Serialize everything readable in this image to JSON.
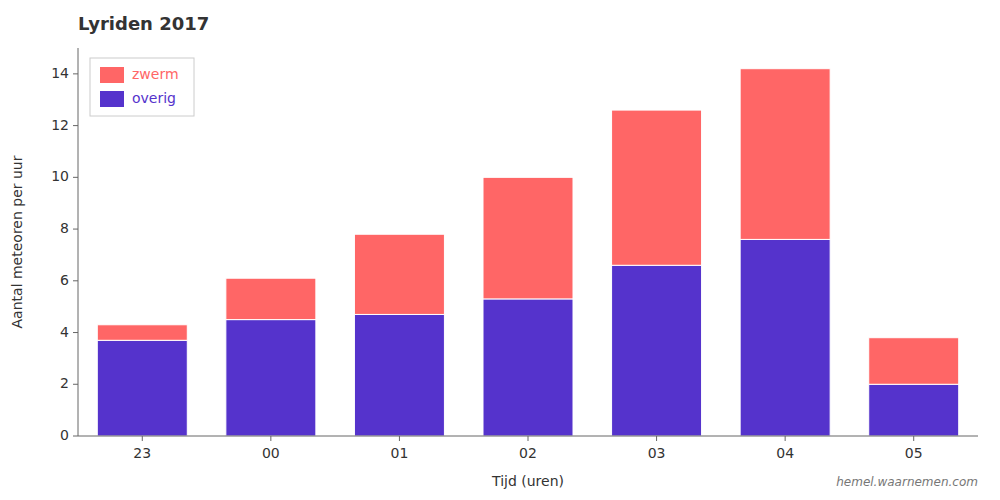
{
  "chart_data": {
    "type": "bar",
    "stacked": true,
    "title": "Lyriden 2017",
    "x_label": "Tijd (uren)",
    "y_label": "Aantal meteoren per uur",
    "categories": [
      "23",
      "00",
      "01",
      "02",
      "03",
      "04",
      "05"
    ],
    "series": [
      {
        "name": "overig",
        "color": "#5533cc",
        "values": [
          3.7,
          4.5,
          4.7,
          5.3,
          6.6,
          7.6,
          2.0
        ]
      },
      {
        "name": "zwerm",
        "color": "#ff6666",
        "values": [
          0.6,
          1.6,
          3.1,
          4.7,
          6.0,
          6.6,
          1.8
        ]
      }
    ],
    "ylim": [
      0,
      15
    ],
    "yticks": [
      0,
      2,
      4,
      6,
      8,
      10,
      12,
      14
    ],
    "grid": false,
    "legend": "upper left",
    "annotations": [
      "hemel.waarnemen.com"
    ]
  }
}
